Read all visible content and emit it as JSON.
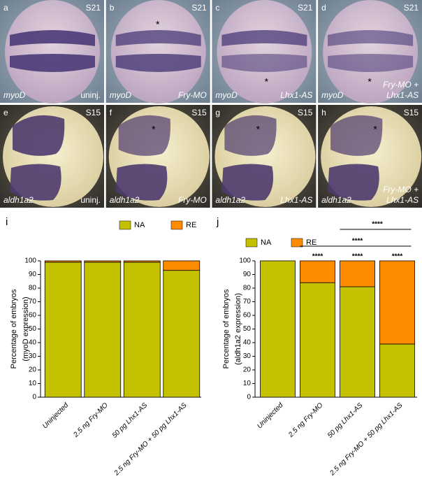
{
  "panels": [
    {
      "letter": "a",
      "stage": "S21",
      "gene": "myoD",
      "condition": [
        "uninj."
      ]
    },
    {
      "letter": "b",
      "stage": "S21",
      "gene": "myoD",
      "condition": [
        "Fry-MO"
      ],
      "mark": "*"
    },
    {
      "letter": "c",
      "stage": "S21",
      "gene": "myoD",
      "condition": [
        "Lhx1-AS"
      ],
      "mark": "*"
    },
    {
      "letter": "d",
      "stage": "S21",
      "gene": "myoD",
      "condition": [
        "Fry-MO +",
        "Lhx1-AS"
      ],
      "mark": "*"
    },
    {
      "letter": "e",
      "stage": "S15",
      "gene": "aldh1a2",
      "condition": [
        "uninj."
      ]
    },
    {
      "letter": "f",
      "stage": "S15",
      "gene": "aldh1a2",
      "condition": [
        "Fry-MO"
      ],
      "mark": "*"
    },
    {
      "letter": "g",
      "stage": "S15",
      "gene": "aldh1a2",
      "condition": [
        "Lhx1-AS"
      ],
      "mark": "*"
    },
    {
      "letter": "h",
      "stage": "S15",
      "gene": "aldh1a2",
      "condition": [
        "Fry-MO +",
        "Lhx1-AS"
      ],
      "mark": "*"
    }
  ],
  "chart_data": [
    {
      "type": "stacked_bar",
      "letter": "i",
      "y_label": [
        "Percentage of embryos",
        "(myoD expression)"
      ],
      "categories": [
        "Uninjected",
        "2.5 ng Fry-MO",
        "50 pg Lhx1-AS",
        "2.5 ng Fry-MO + 50 pg Lhx1-AS"
      ],
      "series": [
        {
          "name": "NA",
          "color": "#c4c200",
          "values": [
            99,
            99,
            99,
            93
          ]
        },
        {
          "name": "RE",
          "color": "#ff8c00",
          "values": [
            1,
            1,
            1,
            7
          ]
        }
      ],
      "ylim": [
        0,
        100
      ],
      "yticks": [
        0,
        10,
        20,
        30,
        40,
        50,
        60,
        70,
        80,
        90,
        100
      ]
    },
    {
      "type": "stacked_bar",
      "letter": "j",
      "y_label": [
        "Percentage of embryos",
        "(aldh1a2 expression)"
      ],
      "categories": [
        "Uninjected",
        "2.5 ng Fry-MO",
        "50 pg Lhx1-AS",
        "2.5 ng Fry-MO + 50 pg Lhx1-AS"
      ],
      "series": [
        {
          "name": "NA",
          "color": "#c4c200",
          "values": [
            100,
            84,
            81,
            39
          ]
        },
        {
          "name": "RE",
          "color": "#ff8c00",
          "values": [
            0,
            16,
            19,
            61
          ]
        }
      ],
      "bar_annotations": [
        null,
        "****",
        "****",
        "****"
      ],
      "comparisons": [
        {
          "from": "2.5 ng Fry-MO",
          "to": "2.5 ng Fry-MO + 50 pg Lhx1-AS",
          "label": "****"
        },
        {
          "from": "50 pg Lhx1-AS",
          "to": "2.5 ng Fry-MO + 50 pg Lhx1-AS",
          "label": "****"
        }
      ],
      "ylim": [
        0,
        100
      ],
      "yticks": [
        0,
        10,
        20,
        30,
        40,
        50,
        60,
        70,
        80,
        90,
        100
      ]
    }
  ]
}
